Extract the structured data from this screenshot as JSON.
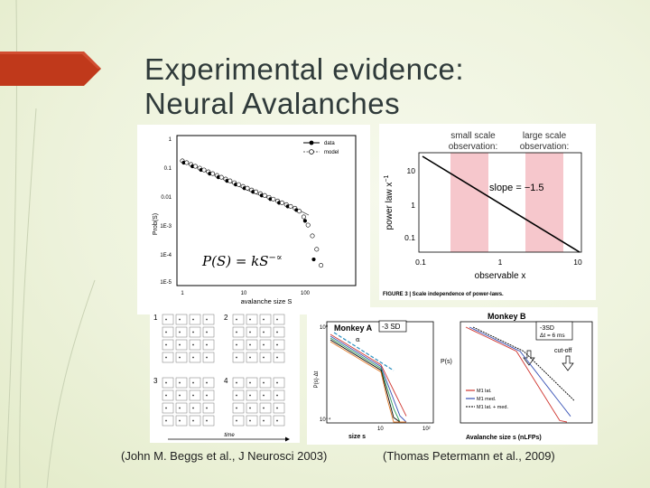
{
  "slide": {
    "title_line1": "Experimental evidence:",
    "title_line2": "Neural Avalanches",
    "accent_color": "#c0391b",
    "background_color": "#eef3dd"
  },
  "fig1": {
    "legend_data": "data",
    "legend_model": "model",
    "ylabel": "Prob(S)",
    "xlabel": "avalanche size S",
    "equation": "P(S) = kS",
    "equation_exp": "−∝",
    "yticks": [
      "1",
      "0.1",
      "0.01",
      "1E-3",
      "1E-4",
      "1E-5"
    ],
    "xticks": [
      "1",
      "10",
      "100"
    ]
  },
  "fig2": {
    "label_small": "small scale observation:",
    "label_large": "large scale observation:",
    "slope_text": "slope = −1.5",
    "ylabel": "power law x",
    "ylabel_exp": "−1",
    "xlabel": "observable x",
    "yticks": [
      "10",
      "1",
      "0.1"
    ],
    "xticks": [
      "0.1",
      "1",
      "10"
    ],
    "footer": "FIGURE 3 | Scale independence of power-laws."
  },
  "fig3": {
    "panels": [
      "1",
      "2",
      "3",
      "4"
    ],
    "time_label": "time"
  },
  "fig4": {
    "title_a": "Monkey A",
    "threshold_a": "-3 SD",
    "title_b": "Monkey B",
    "threshold_b": "-3SD",
    "dt_b": "Δt = 6 ms",
    "cutoff": "cut-off",
    "ylabel_a": "P(s)·Δt",
    "ylabel_b": "P(s)",
    "xlabel_a": "size s",
    "xlabel_b": "Avalanche size s (nLFPs)",
    "alpha_label": "α",
    "legend": [
      "M1 lat.",
      "M1 med.",
      "M1 lat. + med."
    ]
  },
  "captions": {
    "left": "(John M. Beggs et al., J Neurosci 2003)",
    "right": "(Thomas Petermann et al., 2009)"
  }
}
